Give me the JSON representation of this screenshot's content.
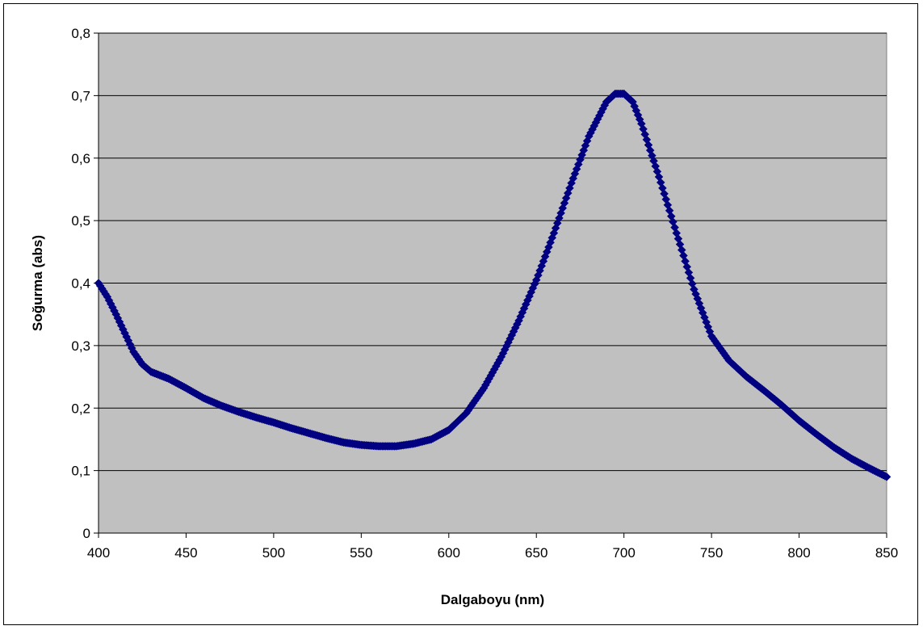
{
  "chart_data": {
    "type": "scatter",
    "title": "",
    "xlabel": "Dalgaboyu (nm)",
    "ylabel": "Soğurma (abs)",
    "xlim": [
      400,
      850
    ],
    "ylim": [
      0,
      0.8
    ],
    "x_ticks": [
      "400",
      "450",
      "500",
      "550",
      "600",
      "650",
      "700",
      "750",
      "800",
      "850"
    ],
    "y_ticks": [
      "0",
      "0,1",
      "0,2",
      "0,3",
      "0,4",
      "0,5",
      "0,6",
      "0,7",
      "0,8"
    ],
    "grid": "horizontal",
    "legend": "none",
    "colors": {
      "plot_background": "#C0C0C0",
      "series": "#000080"
    },
    "series": [
      {
        "x": [
          400,
          405,
          410,
          415,
          420,
          425,
          430,
          440,
          450,
          460,
          470,
          480,
          490,
          500,
          510,
          520,
          530,
          540,
          550,
          560,
          570,
          580,
          590,
          600,
          610,
          620,
          630,
          640,
          650,
          660,
          670,
          680,
          690,
          695,
          700,
          705,
          710,
          720,
          730,
          740,
          750,
          760,
          770,
          780,
          790,
          800,
          810,
          820,
          830,
          840,
          850
        ],
        "y": [
          0.4,
          0.378,
          0.35,
          0.32,
          0.29,
          0.27,
          0.258,
          0.247,
          0.232,
          0.216,
          0.204,
          0.194,
          0.185,
          0.177,
          0.168,
          0.16,
          0.152,
          0.145,
          0.141,
          0.139,
          0.139,
          0.143,
          0.15,
          0.165,
          0.192,
          0.232,
          0.282,
          0.34,
          0.405,
          0.48,
          0.56,
          0.635,
          0.69,
          0.703,
          0.703,
          0.69,
          0.655,
          0.57,
          0.48,
          0.39,
          0.315,
          0.276,
          0.25,
          0.228,
          0.205,
          0.18,
          0.158,
          0.137,
          0.119,
          0.104,
          0.09
        ]
      }
    ]
  }
}
